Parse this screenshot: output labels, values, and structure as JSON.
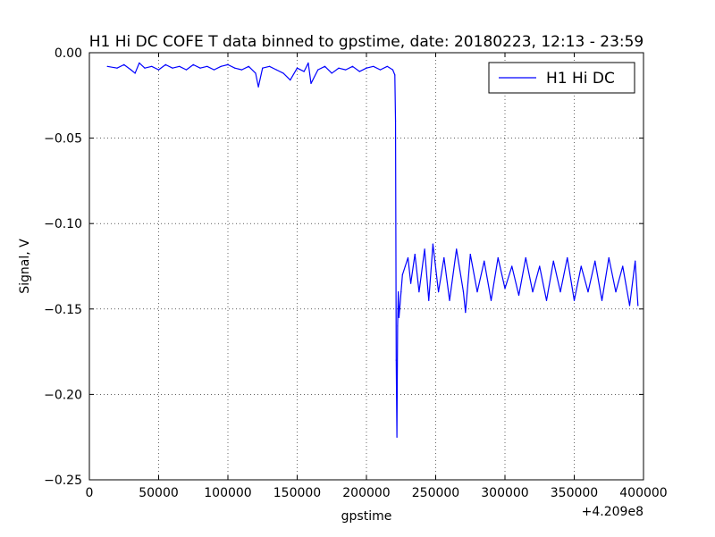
{
  "chart_data": {
    "type": "line",
    "title": "H1 Hi DC COFE T data binned to gpstime, date: 20180223, 12:13 - 23:59",
    "xlabel": "gpstime",
    "ylabel": "Signal, V",
    "x_offset_label": "+4.209e8",
    "xlim": [
      0,
      400000
    ],
    "ylim": [
      -0.25,
      0.0
    ],
    "x_ticks": [
      0,
      50000,
      100000,
      150000,
      200000,
      250000,
      300000,
      350000,
      400000
    ],
    "x_tick_labels": [
      "0",
      "50000",
      "100000",
      "150000",
      "200000",
      "250000",
      "300000",
      "350000",
      "400000"
    ],
    "y_ticks": [
      0.0,
      -0.05,
      -0.1,
      -0.15,
      -0.2,
      -0.25
    ],
    "y_tick_labels": [
      "0.00",
      "−0.05",
      "−0.10",
      "−0.15",
      "−0.20",
      "−0.25"
    ],
    "grid": true,
    "legend_position": "top-right",
    "series": [
      {
        "name": "H1 Hi DC",
        "color": "#0000ff",
        "x": [
          13000,
          20000,
          25000,
          30000,
          33000,
          36000,
          40000,
          45000,
          50000,
          55000,
          60000,
          65000,
          70000,
          75000,
          80000,
          85000,
          90000,
          95000,
          100000,
          105000,
          110000,
          115000,
          120000,
          122000,
          125000,
          130000,
          135000,
          140000,
          145000,
          150000,
          155000,
          158000,
          160000,
          165000,
          170000,
          175000,
          180000,
          185000,
          190000,
          195000,
          200000,
          205000,
          210000,
          215000,
          219000,
          220500,
          221000,
          221500,
          222000,
          222500,
          223000,
          223500,
          224000,
          225000,
          226000,
          228000,
          230000,
          232000,
          235000,
          238000,
          242000,
          245000,
          248000,
          252000,
          256000,
          260000,
          265000,
          270000,
          271500,
          275000,
          280000,
          285000,
          290000,
          295000,
          300000,
          305000,
          310000,
          315000,
          320000,
          325000,
          330000,
          335000,
          340000,
          345000,
          350000,
          355000,
          360000,
          365000,
          370000,
          375000,
          380000,
          385000,
          390000,
          394000,
          396000
        ],
        "y": [
          -0.008,
          -0.009,
          -0.007,
          -0.01,
          -0.012,
          -0.006,
          -0.009,
          -0.008,
          -0.01,
          -0.007,
          -0.009,
          -0.008,
          -0.01,
          -0.007,
          -0.009,
          -0.008,
          -0.01,
          -0.008,
          -0.007,
          -0.009,
          -0.01,
          -0.008,
          -0.012,
          -0.02,
          -0.009,
          -0.008,
          -0.01,
          -0.012,
          -0.016,
          -0.009,
          -0.011,
          -0.006,
          -0.018,
          -0.01,
          -0.008,
          -0.012,
          -0.009,
          -0.01,
          -0.008,
          -0.011,
          -0.009,
          -0.008,
          -0.01,
          -0.008,
          -0.01,
          -0.013,
          -0.04,
          -0.18,
          -0.225,
          -0.16,
          -0.14,
          -0.155,
          -0.15,
          -0.14,
          -0.13,
          -0.125,
          -0.12,
          -0.135,
          -0.118,
          -0.14,
          -0.115,
          -0.145,
          -0.112,
          -0.14,
          -0.12,
          -0.145,
          -0.115,
          -0.14,
          -0.152,
          -0.118,
          -0.14,
          -0.122,
          -0.145,
          -0.12,
          -0.138,
          -0.125,
          -0.142,
          -0.12,
          -0.14,
          -0.125,
          -0.145,
          -0.122,
          -0.14,
          -0.12,
          -0.145,
          -0.125,
          -0.14,
          -0.122,
          -0.145,
          -0.12,
          -0.14,
          -0.125,
          -0.148,
          -0.122,
          -0.148
        ]
      }
    ]
  }
}
